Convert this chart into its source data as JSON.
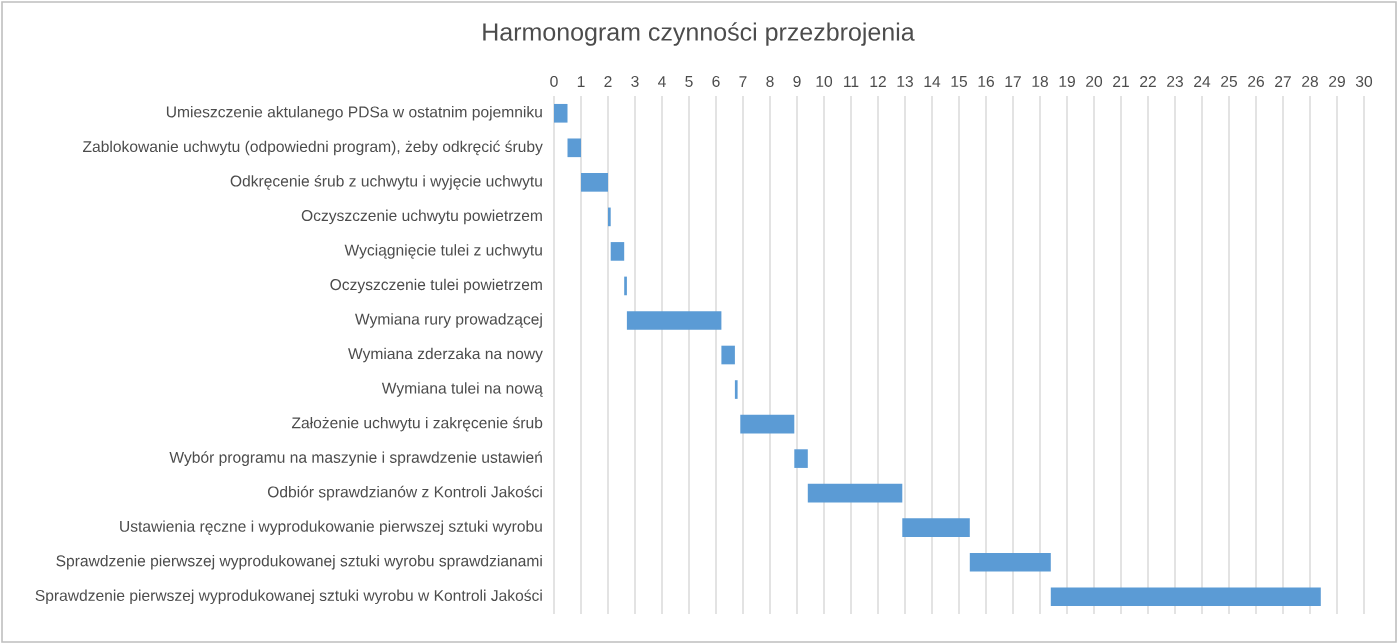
{
  "chart_data": {
    "type": "bar",
    "orientation": "horizontal",
    "title": "Harmonogram czynności przezbrojenia",
    "categories": [
      "Umieszczenie aktulanego PDSa w ostatnim pojemniku",
      "Zablokowanie uchwytu (odpowiedni program), żeby odkręcić śruby",
      "Odkręcenie śrub z uchwytu i wyjęcie uchwytu",
      "Oczyszczenie uchwytu powietrzem",
      "Wyciągnięcie tulei z uchwytu",
      "Oczyszczenie tulei powietrzem",
      "Wymiana rury prowadzącej",
      "Wymiana zderzaka na nowy",
      "Wymiana tulei na nową",
      "Założenie uchwytu i zakręcenie śrub",
      "Wybór programu na maszynie i sprawdzenie ustawień",
      "Odbiór sprawdzianów z Kontroli Jakości",
      "Ustawienia ręczne i wyprodukowanie pierwszej sztuki wyrobu",
      "Sprawdzenie pierwszej wyprodukowanej sztuki wyrobu sprawdzianami",
      "Sprawdzenie pierwszej wyprodukowanej sztuki wyrobu w Kontroli Jakości"
    ],
    "base": [
      0,
      0.5,
      1,
      2,
      2.1,
      2.6,
      2.7,
      6.2,
      6.7,
      6.9,
      8.9,
      9.4,
      12.9,
      15.4,
      18.4
    ],
    "values": [
      0.5,
      0.5,
      1,
      0.1,
      0.5,
      0.1,
      3.5,
      0.5,
      0.1,
      2,
      0.5,
      3.5,
      2.5,
      3,
      10
    ],
    "color": "#5b9bd5",
    "xlim": [
      0,
      30
    ],
    "xticks": [
      0,
      1,
      2,
      3,
      4,
      5,
      6,
      7,
      8,
      9,
      10,
      11,
      12,
      13,
      14,
      15,
      16,
      17,
      18,
      19,
      20,
      21,
      22,
      23,
      24,
      25,
      26,
      27,
      28,
      29,
      30
    ],
    "grid": "x"
  }
}
